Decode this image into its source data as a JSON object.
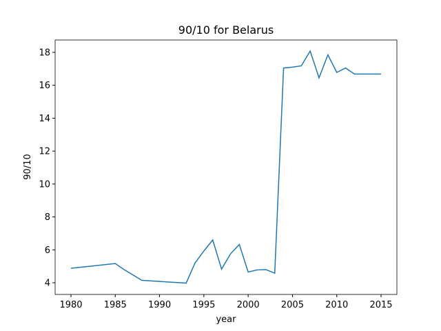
{
  "chart_data": {
    "type": "line",
    "title": "90/10 for Belarus",
    "x_label": "year",
    "y_label": "90/10",
    "x": [
      1980,
      1985,
      1986,
      1988,
      1993,
      1994,
      1995,
      1996,
      1997,
      1998,
      1999,
      2000,
      2001,
      2002,
      2003,
      2004,
      2005,
      2006,
      2007,
      2008,
      2009,
      2010,
      2011,
      2012,
      2013,
      2014,
      2015
    ],
    "series": [
      {
        "name": "90/10",
        "color": "#1f77b4",
        "values": [
          4.88,
          5.17,
          4.8,
          4.15,
          3.98,
          5.2,
          5.93,
          6.6,
          4.83,
          5.75,
          6.33,
          4.65,
          4.78,
          4.8,
          4.58,
          17.05,
          17.1,
          17.18,
          18.08,
          16.45,
          17.85,
          16.78,
          17.05,
          16.68,
          16.68,
          16.68,
          16.68
        ]
      }
    ],
    "xlim": [
      1978.21,
      2016.79
    ],
    "xticks": [
      1980,
      1985,
      1990,
      1995,
      2000,
      2005,
      2010,
      2015
    ],
    "ylim": [
      3.29,
      18.75
    ],
    "yticks": [
      4,
      6,
      8,
      10,
      12,
      14,
      16,
      18
    ]
  }
}
